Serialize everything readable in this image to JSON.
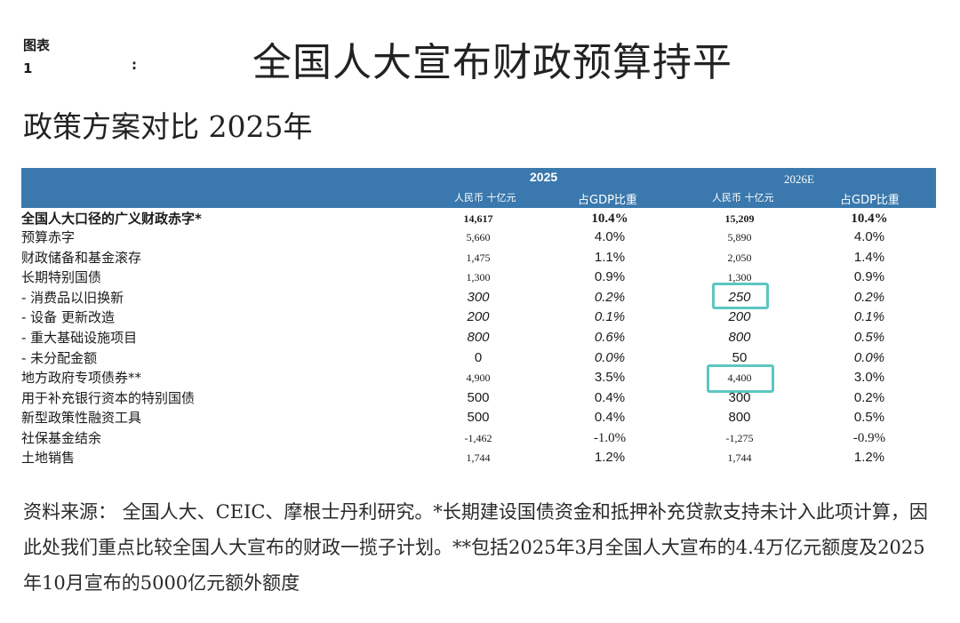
{
  "figure": {
    "label_line1": "图表",
    "label_line2": "1",
    "colon": ":"
  },
  "title": "全国人大宣布财政预算持平",
  "subtitle": "政策方案对比 2025年",
  "header": {
    "year_2025": "2025",
    "year_2026": "2026E",
    "unit_rmb": "人民币 十亿元",
    "unit_gdp": "占GDP比重"
  },
  "rows": [
    {
      "label": "全国人大口径的广义财政赤字*",
      "v2025": "14,617",
      "p2025": "10.4%",
      "v2026": "15,209",
      "p2026": "10.4%"
    },
    {
      "label": "预算赤字",
      "v2025": "5,660",
      "p2025": "4.0%",
      "v2026": "5,890",
      "p2026": "4.0%"
    },
    {
      "label": "财政储备和基金滚存",
      "v2025": "1,475",
      "p2025": "1.1%",
      "v2026": "2,050",
      "p2026": "1.4%"
    },
    {
      "label": "长期特别国债",
      "v2025": "1,300",
      "p2025": "0.9%",
      "v2026": "1,300",
      "p2026": "0.9%"
    },
    {
      "label": "- 消费品以旧换新",
      "v2025": "300",
      "p2025": "0.2%",
      "v2026": "250",
      "p2026": "0.2%"
    },
    {
      "label": "- 设备 更新改造",
      "v2025": "200",
      "p2025": "0.1%",
      "v2026": "200",
      "p2026": "0.1%"
    },
    {
      "label": "- 重大基础设施项目",
      "v2025": "800",
      "p2025": "0.6%",
      "v2026": "800",
      "p2026": "0.5%"
    },
    {
      "label": "- 未分配金额",
      "v2025": "0",
      "p2025": "0.0%",
      "v2026": "50",
      "p2026": "0.0%"
    },
    {
      "label": "地方政府专项债券**",
      "v2025": "4,900",
      "p2025": "3.5%",
      "v2026": "4,400",
      "p2026": "3.0%"
    },
    {
      "label": "用于补充银行资本的特别国债",
      "v2025": "500",
      "p2025": "0.4%",
      "v2026": "300",
      "p2026": "0.2%"
    },
    {
      "label": "新型政策性融资工具",
      "v2025": "500",
      "p2025": "0.4%",
      "v2026": "800",
      "p2026": "0.5%"
    },
    {
      "label": "社保基金结余",
      "v2025": "-1,462",
      "p2025": "-1.0%",
      "v2026": "-1,275",
      "p2026": "-0.9%"
    },
    {
      "label": "土地销售",
      "v2025": "1,744",
      "p2025": "1.2%",
      "v2026": "1,744",
      "p2026": "1.2%"
    }
  ],
  "footnote": "资料来源： 全国人大、CEIC、摩根士丹利研究。*长期建设国债资金和抵押补充贷款支持未计入此项计算，因此处我们重点比较全国人大宣布的财政一揽子计划。**包括2025年3月全国人大宣布的4.4万亿元额度及2025年10月宣布的5000亿元额外额度",
  "colors": {
    "header_bg": "#3a78ad",
    "highlight": "#5cc7c0"
  }
}
